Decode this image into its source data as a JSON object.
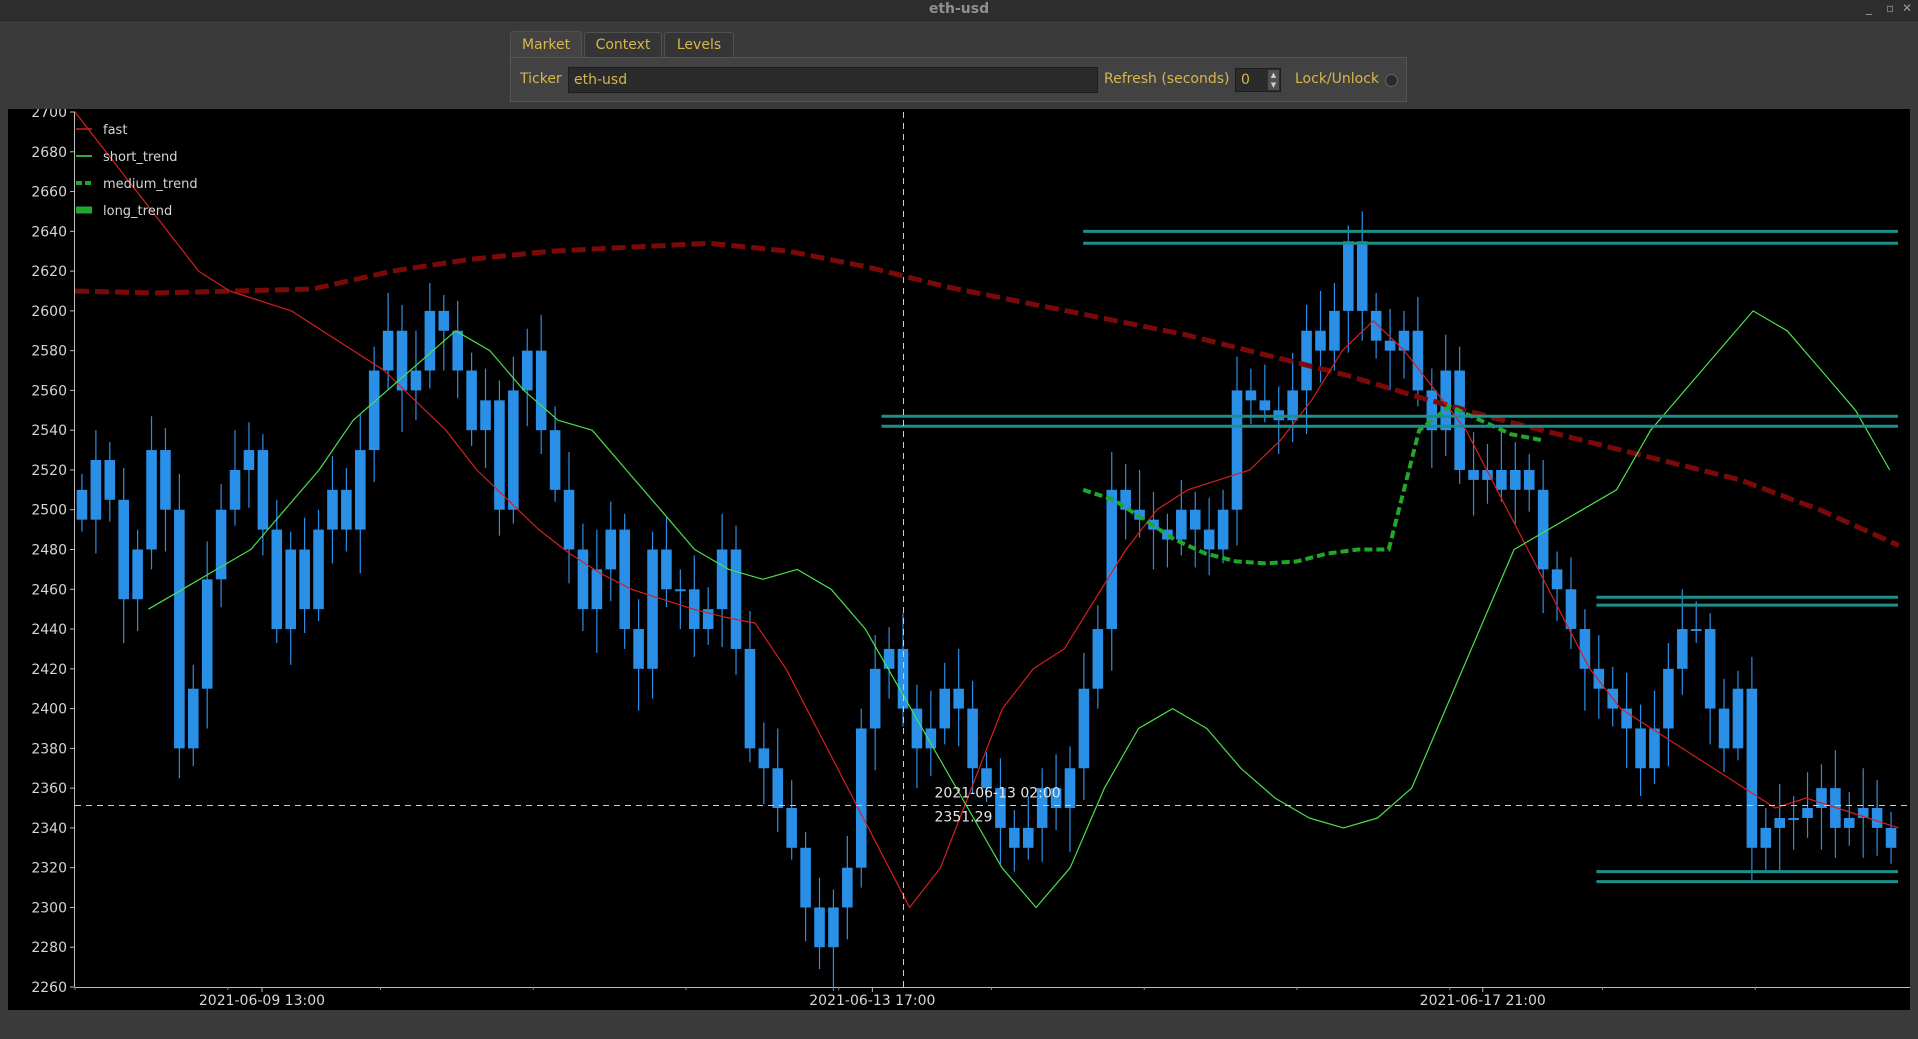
{
  "window": {
    "title": "eth-usd"
  },
  "tabs": [
    {
      "label": "Market",
      "active": true
    },
    {
      "label": "Context",
      "active": false
    },
    {
      "label": "Levels",
      "active": false
    }
  ],
  "market_panel": {
    "ticker_label": "Ticker",
    "ticker_value": "eth-usd",
    "refresh_label": "Refresh (seconds)",
    "refresh_value": "0",
    "lock_label": "Lock/Unlock"
  },
  "colors": {
    "accent": "#d8b64c",
    "background": "#3a3a3a",
    "chart_bg": "#000000",
    "candle": "#2a8fe6",
    "fast": "#d42020",
    "short_trend": "#4be04b",
    "medium_trend": "#1fa82a",
    "long_trend": "#7a0a0a",
    "level_line": "#1d8f8a"
  },
  "chart_data": {
    "type": "line",
    "title": "",
    "y_ticks": [
      2260,
      2280,
      2300,
      2320,
      2340,
      2360,
      2380,
      2400,
      2420,
      2440,
      2460,
      2480,
      2500,
      2520,
      2540,
      2560,
      2580,
      2600,
      2620,
      2640,
      2660,
      2680,
      2700
    ],
    "ylim": [
      2260,
      2700
    ],
    "x_ticks": [
      "2021-06-09 13:00",
      "2021-06-13 17:00",
      "2021-06-17 21:00"
    ],
    "legend": [
      {
        "name": "fast"
      },
      {
        "name": "short_trend"
      },
      {
        "name": "medium_trend"
      },
      {
        "name": "long_trend"
      }
    ],
    "legend_position": "top-left",
    "crosshair": {
      "time_label": "2021-06-13 02:00",
      "price_label": "2351.29",
      "price": 2351.29
    },
    "candles_close": [
      2495,
      2525,
      2505,
      2455,
      2480,
      2530,
      2500,
      2380,
      2410,
      2465,
      2500,
      2520,
      2530,
      2490,
      2440,
      2480,
      2450,
      2490,
      2510,
      2490,
      2530,
      2570,
      2590,
      2560,
      2570,
      2600,
      2590,
      2570,
      2540,
      2555,
      2500,
      2560,
      2580,
      2540,
      2510,
      2480,
      2450,
      2470,
      2490,
      2440,
      2420,
      2480,
      2460,
      2460,
      2440,
      2450,
      2480,
      2430,
      2380,
      2370,
      2350,
      2330,
      2300,
      2280,
      2300,
      2320,
      2390,
      2420,
      2430,
      2400,
      2380,
      2390,
      2410,
      2400,
      2370,
      2360,
      2340,
      2330,
      2340,
      2360,
      2350,
      2370,
      2410,
      2440,
      2510,
      2500,
      2495,
      2490,
      2485,
      2500,
      2490,
      2480,
      2500,
      2560,
      2555,
      2550,
      2545,
      2560,
      2590,
      2580,
      2600,
      2635,
      2600,
      2585,
      2580,
      2590,
      2560,
      2540,
      2570,
      2520,
      2515,
      2520,
      2510,
      2520,
      2510,
      2470,
      2460,
      2440,
      2420,
      2410,
      2400,
      2390,
      2370,
      2390,
      2420,
      2440,
      2440,
      2400,
      2380,
      2410,
      2330,
      2340,
      2345,
      2345,
      2350,
      2360,
      2340,
      2345,
      2350,
      2340,
      2330
    ],
    "fast": [
      2700,
      2680,
      2660,
      2640,
      2620,
      2610,
      2605,
      2600,
      2590,
      2580,
      2570,
      2555,
      2540,
      2520,
      2505,
      2490,
      2478,
      2468,
      2460,
      2455,
      2450,
      2446,
      2443,
      2420,
      2390,
      2360,
      2330,
      2300,
      2320,
      2360,
      2400,
      2420,
      2430,
      2455,
      2480,
      2500,
      2510,
      2515,
      2520,
      2535,
      2555,
      2580,
      2595,
      2580,
      2560,
      2540,
      2510,
      2480,
      2450,
      2420,
      2400,
      2390,
      2380,
      2370,
      2360,
      2350,
      2355,
      2350,
      2345,
      2340
    ],
    "short_trend": [
      2450,
      2460,
      2470,
      2480,
      2500,
      2520,
      2545,
      2560,
      2575,
      2590,
      2580,
      2560,
      2545,
      2540,
      2520,
      2500,
      2480,
      2470,
      2465,
      2470,
      2460,
      2440,
      2410,
      2380,
      2350,
      2320,
      2300,
      2320,
      2360,
      2390,
      2400,
      2390,
      2370,
      2355,
      2345,
      2340,
      2345,
      2360,
      2400,
      2440,
      2480,
      2490,
      2500,
      2510,
      2540,
      2560,
      2580,
      2600,
      2590,
      2570,
      2550,
      2520
    ],
    "medium_trend": [
      2510,
      2505,
      2495,
      2485,
      2478,
      2474,
      2473,
      2474,
      2478,
      2480,
      2480,
      2540,
      2552,
      2545,
      2538,
      2535
    ],
    "long_trend": [
      2610,
      2609,
      2610,
      2611,
      2620,
      2626,
      2630,
      2632,
      2634,
      2630,
      2622,
      2612,
      2604,
      2596,
      2588,
      2578,
      2568,
      2556,
      2545,
      2535,
      2525,
      2515,
      2500,
      2482
    ]
  }
}
